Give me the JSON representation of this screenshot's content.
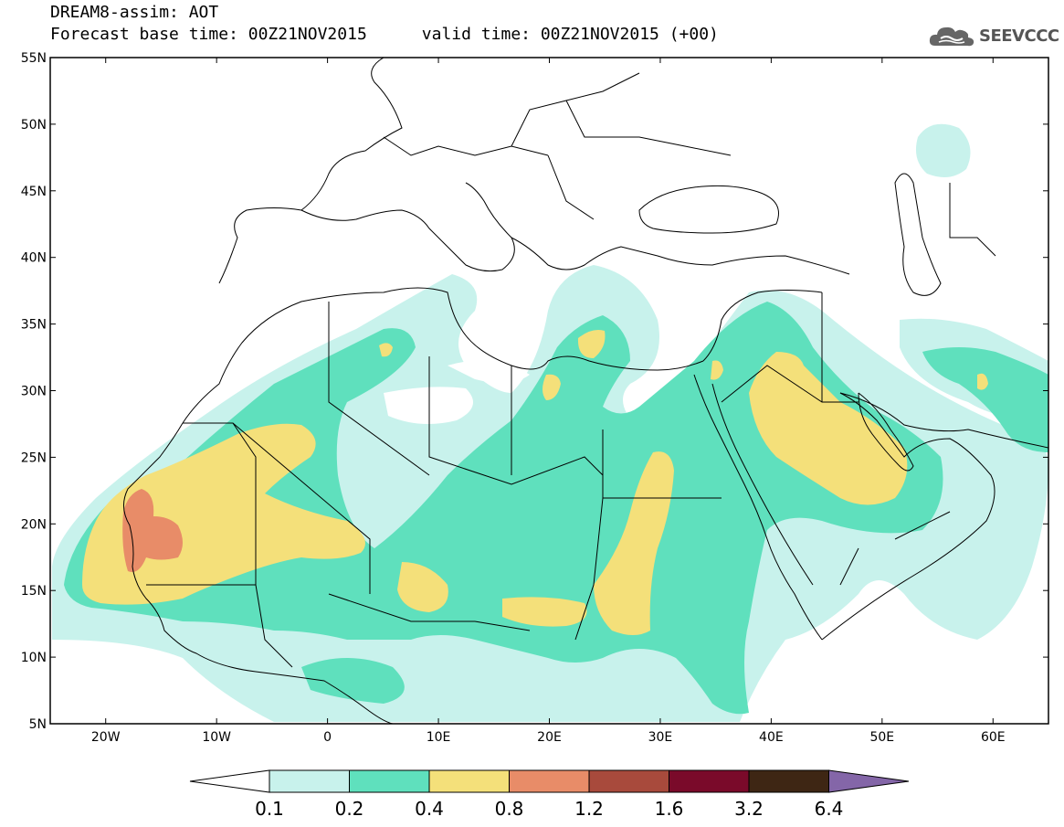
{
  "header": {
    "title": "DREAM8-assim: AOT",
    "base_time_label": "Forecast base time: 00Z21NOV2015",
    "valid_time_label": "valid time: 00Z21NOV2015 (+00)",
    "logo_text": "SEEVCCC",
    "logo_icon": "cloud-icon"
  },
  "map": {
    "lon_range": [
      -25,
      65
    ],
    "lat_range": [
      5,
      55
    ],
    "lat_ticks": [
      {
        "value": 55,
        "label": "55N"
      },
      {
        "value": 50,
        "label": "50N"
      },
      {
        "value": 45,
        "label": "45N"
      },
      {
        "value": 40,
        "label": "40N"
      },
      {
        "value": 35,
        "label": "35N"
      },
      {
        "value": 30,
        "label": "30N"
      },
      {
        "value": 25,
        "label": "25N"
      },
      {
        "value": 20,
        "label": "20N"
      },
      {
        "value": 15,
        "label": "15N"
      },
      {
        "value": 10,
        "label": "10N"
      },
      {
        "value": 5,
        "label": "5N"
      }
    ],
    "lon_ticks": [
      {
        "value": -20,
        "label": "20W"
      },
      {
        "value": -10,
        "label": "10W"
      },
      {
        "value": 0,
        "label": "0"
      },
      {
        "value": 10,
        "label": "10E"
      },
      {
        "value": 20,
        "label": "20E"
      },
      {
        "value": 30,
        "label": "30E"
      },
      {
        "value": 40,
        "label": "40E"
      },
      {
        "value": 50,
        "label": "50E"
      },
      {
        "value": 60,
        "label": "60E"
      }
    ]
  },
  "colorbar": {
    "labels": [
      "0.1",
      "0.2",
      "0.4",
      "0.8",
      "1.2",
      "1.6",
      "3.2",
      "6.4"
    ],
    "colors": [
      "#ffffff",
      "#c8f2ec",
      "#5fe0bd",
      "#f4e07a",
      "#e88c68",
      "#a84a3c",
      "#7a0a2a",
      "#3e2614",
      "#8466a8"
    ]
  },
  "colors": {
    "level_1": "#c8f2ec",
    "level_2": "#5fe0bd",
    "level_3": "#f4e07a",
    "level_4": "#e88c68",
    "level_5": "#a84a3c"
  }
}
